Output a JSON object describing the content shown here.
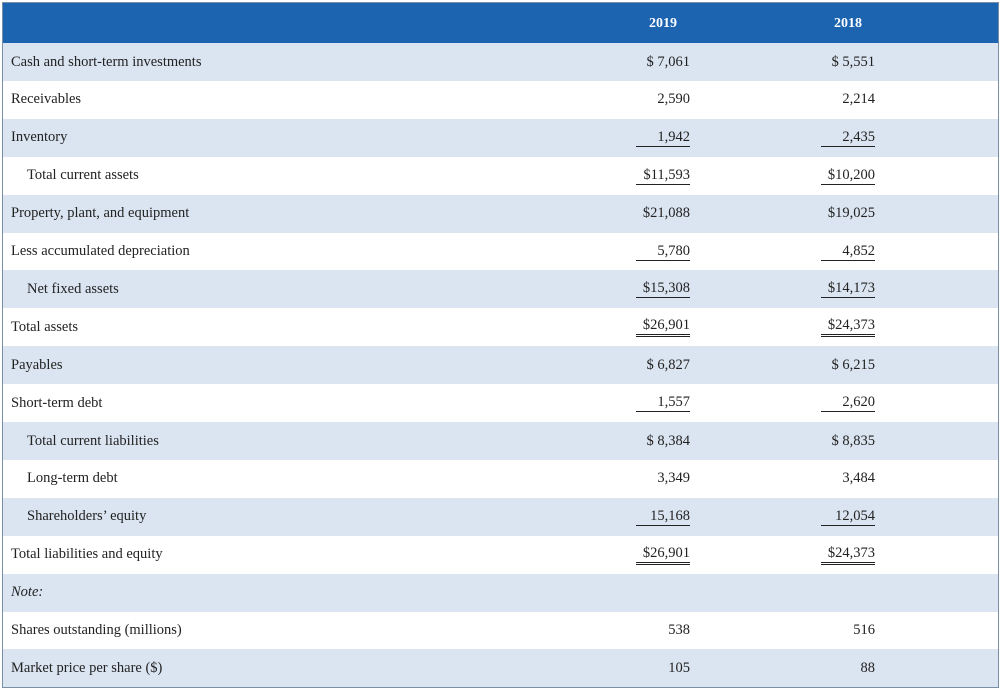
{
  "table": {
    "header": [
      "2019",
      "2018"
    ],
    "rows": [
      [
        "Cash and short-term investments",
        "$ 7,061",
        "$ 5,551"
      ],
      [
        "Receivables",
        "2,590",
        "2,214"
      ],
      [
        "Inventory",
        "1,942",
        "2,435"
      ],
      [
        "Total current assets",
        "$11,593",
        "$10,200"
      ],
      [
        "Property, plant, and equipment",
        "$21,088",
        "$19,025"
      ],
      [
        "Less accumulated depreciation",
        "5,780",
        "4,852"
      ],
      [
        "Net fixed assets",
        "$15,308",
        "$14,173"
      ],
      [
        "Total assets",
        "$26,901",
        "$24,373"
      ],
      [
        "Payables",
        "$ 6,827",
        "$ 6,215"
      ],
      [
        "Short-term debt",
        "1,557",
        "2,620"
      ],
      [
        "Total current liabilities",
        "$ 8,384",
        "$ 8,835"
      ],
      [
        "Long-term debt",
        "3,349",
        "3,484"
      ],
      [
        "Shareholders’ equity",
        "15,168",
        "12,054"
      ],
      [
        "Total liabilities and equity",
        "$26,901",
        "$24,373"
      ],
      [
        "Note:"
      ],
      [
        "Shares outstanding (millions)",
        "538",
        "516"
      ],
      [
        "Market price per share ($)",
        "105",
        "88"
      ]
    ]
  }
}
